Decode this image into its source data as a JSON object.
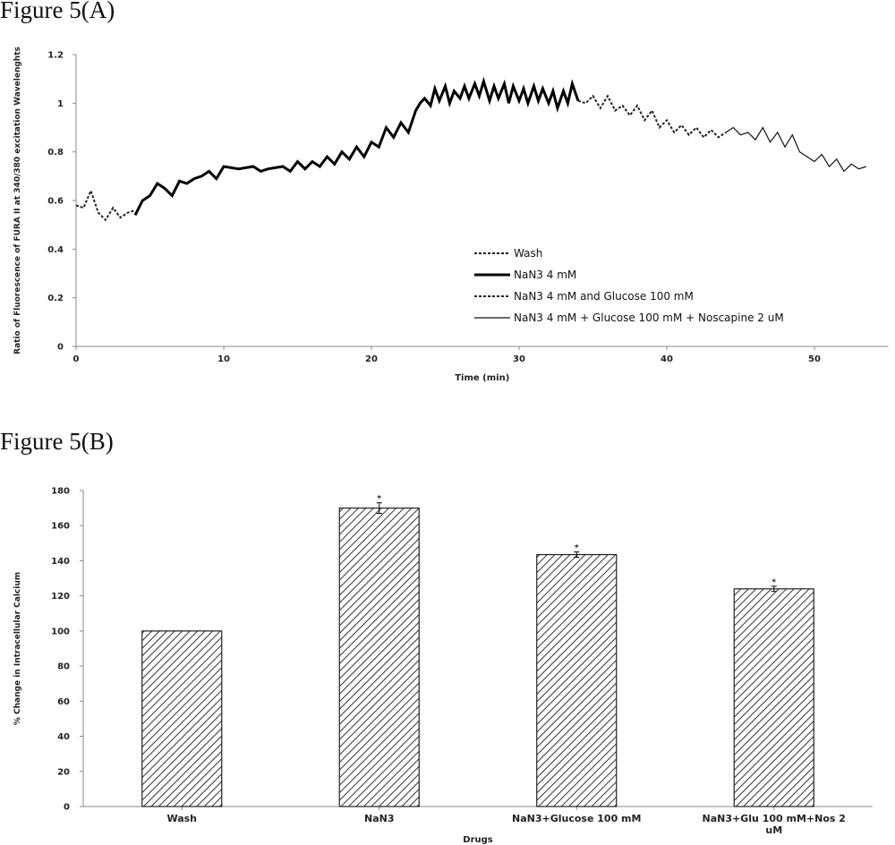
{
  "figures": {
    "a_title": "Figure 5(A)",
    "b_title": "Figure 5(B)"
  },
  "chart_data": [
    {
      "type": "line",
      "xlabel": "Time (min)",
      "ylabel": "Ratio of Fluorescence of FURA II at 340/380 excitation Wavelenghts",
      "xlim": [
        0,
        55
      ],
      "ylim": [
        0,
        1.2
      ],
      "xticks": [
        "0",
        "10",
        "20",
        "30",
        "40",
        "50"
      ],
      "yticks": [
        "0",
        "0.2",
        "0.4",
        "0.6",
        "0.8",
        "1",
        "1.2"
      ],
      "legend_position": "bottom-right",
      "series": [
        {
          "name": "Wash",
          "style": "dotted",
          "x": [
            0,
            0.5,
            1,
            1.5,
            2,
            2.5,
            3,
            3.5,
            4
          ],
          "y": [
            0.58,
            0.57,
            0.64,
            0.55,
            0.52,
            0.57,
            0.53,
            0.55,
            0.56
          ]
        },
        {
          "name": "NaN3 4 mM",
          "style": "thick",
          "x": [
            4,
            4.5,
            5,
            5.5,
            6,
            6.5,
            7,
            7.5,
            8,
            8.5,
            9,
            9.5,
            10,
            11,
            12,
            12.5,
            13,
            14,
            14.5,
            15,
            15.5,
            16,
            16.5,
            17,
            17.5,
            18,
            18.5,
            19,
            19.5,
            20,
            20.5,
            21,
            21.5,
            22,
            22.5,
            23,
            23.3,
            23.6,
            24,
            24.3,
            24.6,
            25,
            25.3,
            25.6,
            26,
            26.3,
            26.6,
            27,
            27.3,
            27.6,
            28,
            28.3,
            28.6,
            29,
            29.3,
            29.6,
            30,
            30.3,
            30.6,
            31,
            31.3,
            31.6,
            32,
            32.3,
            32.6,
            33,
            33.3,
            33.6,
            34
          ],
          "y": [
            0.54,
            0.6,
            0.62,
            0.67,
            0.65,
            0.62,
            0.68,
            0.67,
            0.69,
            0.7,
            0.72,
            0.69,
            0.74,
            0.73,
            0.74,
            0.72,
            0.73,
            0.74,
            0.72,
            0.76,
            0.73,
            0.76,
            0.74,
            0.78,
            0.75,
            0.8,
            0.77,
            0.82,
            0.78,
            0.84,
            0.82,
            0.9,
            0.86,
            0.92,
            0.88,
            0.97,
            1.0,
            1.02,
            0.99,
            1.06,
            1.01,
            1.07,
            1.0,
            1.05,
            1.02,
            1.07,
            1.02,
            1.08,
            1.03,
            1.09,
            1.01,
            1.07,
            1.02,
            1.08,
            1.0,
            1.07,
            1.01,
            1.06,
            1.0,
            1.07,
            1.01,
            1.06,
            1.0,
            1.05,
            0.98,
            1.05,
            1.0,
            1.08,
            1.01
          ]
        },
        {
          "name": "NaN3 4 mM and Glucose 100 mM",
          "style": "dotted",
          "x": [
            34,
            34.5,
            35,
            35.5,
            36,
            36.5,
            37,
            37.5,
            38,
            38.5,
            39,
            39.5,
            40,
            40.5,
            41,
            41.5,
            42,
            42.5,
            43,
            43.5,
            44
          ],
          "y": [
            1.01,
            1.0,
            1.03,
            0.98,
            1.03,
            0.97,
            0.99,
            0.95,
            0.99,
            0.93,
            0.97,
            0.9,
            0.93,
            0.88,
            0.91,
            0.87,
            0.9,
            0.86,
            0.89,
            0.86,
            0.88
          ]
        },
        {
          "name": "NaN3 4 mM + Glucose 100 mM + Noscapine 2 uM",
          "style": "thin",
          "x": [
            44,
            44.5,
            45,
            45.5,
            46,
            46.5,
            47,
            47.5,
            48,
            48.5,
            49,
            49.5,
            50,
            50.5,
            51,
            51.5,
            52,
            52.5,
            53,
            53.5
          ],
          "y": [
            0.88,
            0.9,
            0.87,
            0.88,
            0.85,
            0.9,
            0.84,
            0.88,
            0.82,
            0.87,
            0.8,
            0.78,
            0.76,
            0.79,
            0.74,
            0.77,
            0.72,
            0.75,
            0.73,
            0.74
          ]
        }
      ]
    },
    {
      "type": "bar",
      "xlabel": "Drugs",
      "ylabel": "% Change in Intracellular Calcium",
      "ylim": [
        0,
        180
      ],
      "yticks": [
        "0",
        "20",
        "40",
        "60",
        "80",
        "100",
        "120",
        "140",
        "160",
        "180"
      ],
      "categories": [
        "Wash",
        "NaN3",
        "NaN3+Glucose 100 mM",
        "NaN3+Glu 100 mM+Nos 2 uM"
      ],
      "category_lines": [
        [
          "Wash"
        ],
        [
          "NaN3"
        ],
        [
          "NaN3+Glucose 100 mM"
        ],
        [
          "NaN3+Glu 100 mM+Nos 2",
          "uM"
        ]
      ],
      "values": [
        100,
        170,
        143.5,
        124
      ],
      "errors": [
        0,
        3,
        1.5,
        1.5
      ],
      "annotations": [
        "",
        "*",
        "*",
        "*"
      ]
    }
  ]
}
